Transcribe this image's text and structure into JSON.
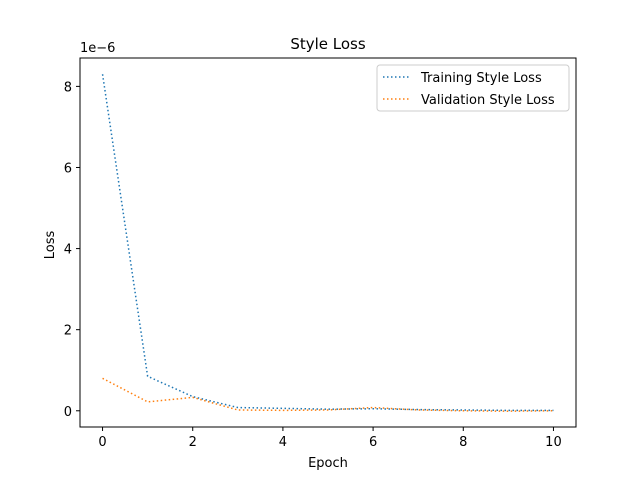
{
  "chart_data": {
    "type": "line",
    "title": "Style Loss",
    "xlabel": "Epoch",
    "ylabel": "Loss",
    "offset_text": "1e−6",
    "xlim": [
      -0.5,
      10.5
    ],
    "ylim": [
      -0.4,
      8.7
    ],
    "x_ticks": [
      0,
      2,
      4,
      6,
      8,
      10
    ],
    "x_tick_labels": [
      "0",
      "2",
      "4",
      "6",
      "8",
      "10"
    ],
    "y_ticks": [
      0,
      2,
      4,
      6,
      8
    ],
    "y_tick_labels": [
      "0",
      "2",
      "4",
      "6",
      "8"
    ],
    "grid": false,
    "legend_position": "top-right",
    "x": [
      0,
      1,
      2,
      3,
      4,
      5,
      6,
      7,
      8,
      9,
      10
    ],
    "series": [
      {
        "name": "Training Style Loss",
        "color": "#1f77b4",
        "line_style": "dotted",
        "values": [
          8.3,
          0.85,
          0.35,
          0.08,
          0.06,
          0.04,
          0.05,
          0.03,
          0.02,
          0.01,
          0.01
        ]
      },
      {
        "name": "Validation Style Loss",
        "color": "#ff7f0e",
        "line_style": "dotted",
        "values": [
          0.8,
          0.22,
          0.33,
          0.02,
          0.01,
          0.02,
          0.08,
          0.02,
          0.0,
          -0.01,
          0.0
        ]
      }
    ]
  }
}
